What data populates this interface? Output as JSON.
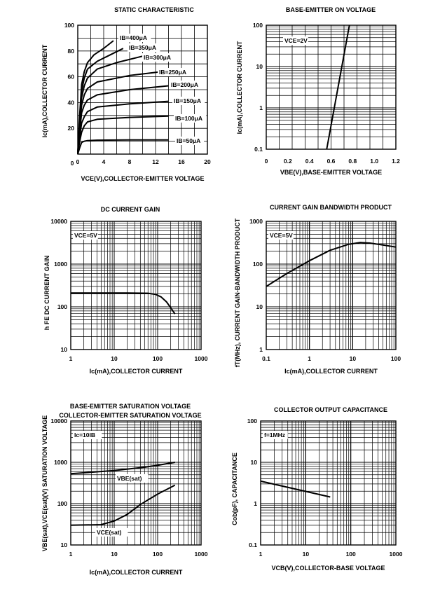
{
  "chart_data": [
    {
      "id": "static",
      "type": "line",
      "title": "STATIC CHARACTERISTIC",
      "xlabel": "VCE(V),COLLECTOR-EMITTER VOLTAGE",
      "ylabel": "Ic(mA),COLLECTOR CURRENT",
      "xscale": "linear",
      "yscale": "linear",
      "xlim": [
        0,
        20
      ],
      "ylim": [
        0,
        100
      ],
      "xticks": [
        0,
        4,
        8,
        12,
        16,
        20
      ],
      "yticks": [
        20,
        40,
        60,
        80,
        100
      ],
      "grid": true,
      "series": [
        {
          "name": "IB=50μA",
          "x": [
            0,
            0.3,
            0.6,
            1,
            1.5,
            3,
            8,
            14
          ],
          "y": [
            0,
            5,
            9,
            10,
            10.5,
            10.8,
            11,
            11
          ]
        },
        {
          "name": "IB=100μA",
          "x": [
            0,
            0.3,
            0.6,
            1,
            1.5,
            3,
            8,
            14
          ],
          "y": [
            0,
            10,
            17,
            22,
            25,
            27,
            28.5,
            29.5
          ]
        },
        {
          "name": "IB=150μA",
          "x": [
            0,
            0.3,
            0.6,
            1,
            1.5,
            3,
            8,
            14
          ],
          "y": [
            0,
            14,
            24,
            29,
            33,
            36.5,
            39,
            41
          ]
        },
        {
          "name": "IB=200μA",
          "x": [
            0,
            0.3,
            0.6,
            1,
            1.5,
            3,
            8,
            14
          ],
          "y": [
            0,
            18,
            32,
            38,
            42,
            46,
            50,
            53
          ]
        },
        {
          "name": "IB=250μA",
          "x": [
            0,
            0.3,
            0.6,
            1,
            1.5,
            3,
            8,
            13
          ],
          "y": [
            0,
            22,
            38,
            46,
            51,
            56,
            61,
            64
          ]
        },
        {
          "name": "IB=300μA",
          "x": [
            0,
            0.3,
            0.6,
            1,
            1.5,
            3,
            6,
            10
          ],
          "y": [
            0,
            25,
            44,
            53,
            59,
            66,
            71,
            76
          ]
        },
        {
          "name": "IB=350μA",
          "x": [
            0,
            0.3,
            0.6,
            1,
            1.5,
            3,
            5,
            7
          ],
          "y": [
            0,
            28,
            49,
            59,
            66,
            72,
            77,
            82
          ]
        },
        {
          "name": "IB=400μA",
          "x": [
            0,
            0.3,
            0.6,
            1,
            1.5,
            2.5,
            4,
            5.5
          ],
          "y": [
            0,
            31,
            54,
            64,
            71,
            77,
            82,
            88
          ]
        }
      ],
      "labels": [
        "IB=400μA",
        "IB=350μA",
        "IB=300μA",
        "IB=250μA",
        "IB=200μA",
        "IB=150μA",
        "IB=100μA",
        "IB=50μA"
      ]
    },
    {
      "id": "vbe",
      "type": "line",
      "title": "BASE-EMITTER ON VOLTAGE",
      "xlabel": "VBE(V),BASE-EMITTER VOLTAGE",
      "ylabel": "Ic(mA),COLLECTOR CURRENT",
      "xscale": "linear",
      "yscale": "log",
      "xlim": [
        0,
        1.2
      ],
      "ylim": [
        0.1,
        100
      ],
      "xticks": [
        0,
        0.2,
        0.4,
        0.6,
        0.8,
        1.0,
        1.2
      ],
      "xtick_labels": [
        "0",
        "0.2",
        "0.4",
        "0.6",
        "0.8",
        "1.0",
        "1.2"
      ],
      "yticks": [
        0.1,
        1,
        10,
        100
      ],
      "ytick_labels": [
        "0.1",
        "1",
        "10",
        "100"
      ],
      "grid": true,
      "series": [
        {
          "x": [
            0.56,
            0.77
          ],
          "y": [
            0.1,
            100
          ]
        }
      ],
      "annotation": "VCE=2V"
    },
    {
      "id": "hfe",
      "type": "line",
      "title": "DC CURRENT GAIN",
      "xlabel": "Ic(mA),COLLECTOR CURRENT",
      "ylabel": "h FE DC CURRENT GAIN",
      "xscale": "log",
      "yscale": "log",
      "xlim": [
        1,
        1000
      ],
      "ylim": [
        10,
        10000
      ],
      "xticks": [
        1,
        10,
        100,
        1000
      ],
      "yticks": [
        10,
        100,
        1000,
        10000
      ],
      "grid": true,
      "series": [
        {
          "x": [
            1,
            5,
            20,
            60,
            90,
            120,
            160,
            200,
            250
          ],
          "y": [
            210,
            210,
            210,
            208,
            195,
            170,
            130,
            95,
            68
          ]
        }
      ],
      "annotation": "VCE=5V"
    },
    {
      "id": "ft",
      "type": "line",
      "title": "CURRENT GAIN BANDWIDTH PRODUCT",
      "xlabel": "Ic(mA),COLLECTOR CURRENT",
      "ylabel": "fT(MHz), CURRENT GAIN-BANDWIDTH PRODUCT",
      "xscale": "log",
      "yscale": "log",
      "xlim": [
        0.1,
        100
      ],
      "ylim": [
        1,
        1000
      ],
      "xticks": [
        0.1,
        1,
        10,
        100
      ],
      "yticks": [
        1,
        10,
        100,
        1000
      ],
      "grid": true,
      "series": [
        {
          "x": [
            0.1,
            0.3,
            1,
            3,
            8,
            15,
            25,
            50,
            100
          ],
          "y": [
            30,
            60,
            120,
            210,
            290,
            320,
            310,
            280,
            250
          ]
        }
      ],
      "annotation": "VCE=5V"
    },
    {
      "id": "sat",
      "type": "line",
      "title": "BASE-EMITTER SATURATION VOLTAGE",
      "subtitle": "COLLECTOR-EMITTER SATURATION VOLTAGE",
      "xlabel": "Ic(mA),COLLECTOR CURRENT",
      "ylabel": "VBE(sat),VCE(sat)(V) SATURATION VOLTAGE",
      "xscale": "log",
      "yscale": "log",
      "xlim": [
        1,
        1000
      ],
      "ylim": [
        10,
        10000
      ],
      "xticks": [
        1,
        10,
        100,
        1000
      ],
      "yticks": [
        10,
        100,
        1000,
        10000
      ],
      "grid": true,
      "series": [
        {
          "name": "VBE(sat)",
          "x": [
            1,
            10,
            50,
            100,
            250
          ],
          "y": [
            530,
            630,
            760,
            850,
            1000
          ]
        },
        {
          "name": "VCE(sat)",
          "x": [
            1,
            5,
            10,
            20,
            40,
            100,
            250
          ],
          "y": [
            30,
            31,
            38,
            55,
            95,
            170,
            280
          ]
        }
      ],
      "annotation": "Ic=10IB",
      "series_labels": [
        "VBE(sat)",
        "VCE(sat)"
      ]
    },
    {
      "id": "cob",
      "type": "line",
      "title": "COLLECTOR OUTPUT CAPACITANCE",
      "xlabel": "VCB(V),COLLECTOR-BASE VOLTAGE",
      "ylabel": "Cob(pF), CAPACITANCE",
      "xscale": "log",
      "yscale": "log",
      "xlim": [
        1,
        1000
      ],
      "ylim": [
        0.1,
        100
      ],
      "xticks": [
        1,
        10,
        100,
        1000
      ],
      "yticks": [
        0.1,
        1,
        10,
        100
      ],
      "ytick_labels": [
        "0.1",
        "1",
        "10",
        "100"
      ],
      "grid": true,
      "series": [
        {
          "x": [
            1,
            35
          ],
          "y": [
            3.5,
            1.45
          ]
        }
      ],
      "annotation": "f=1MHz"
    }
  ]
}
